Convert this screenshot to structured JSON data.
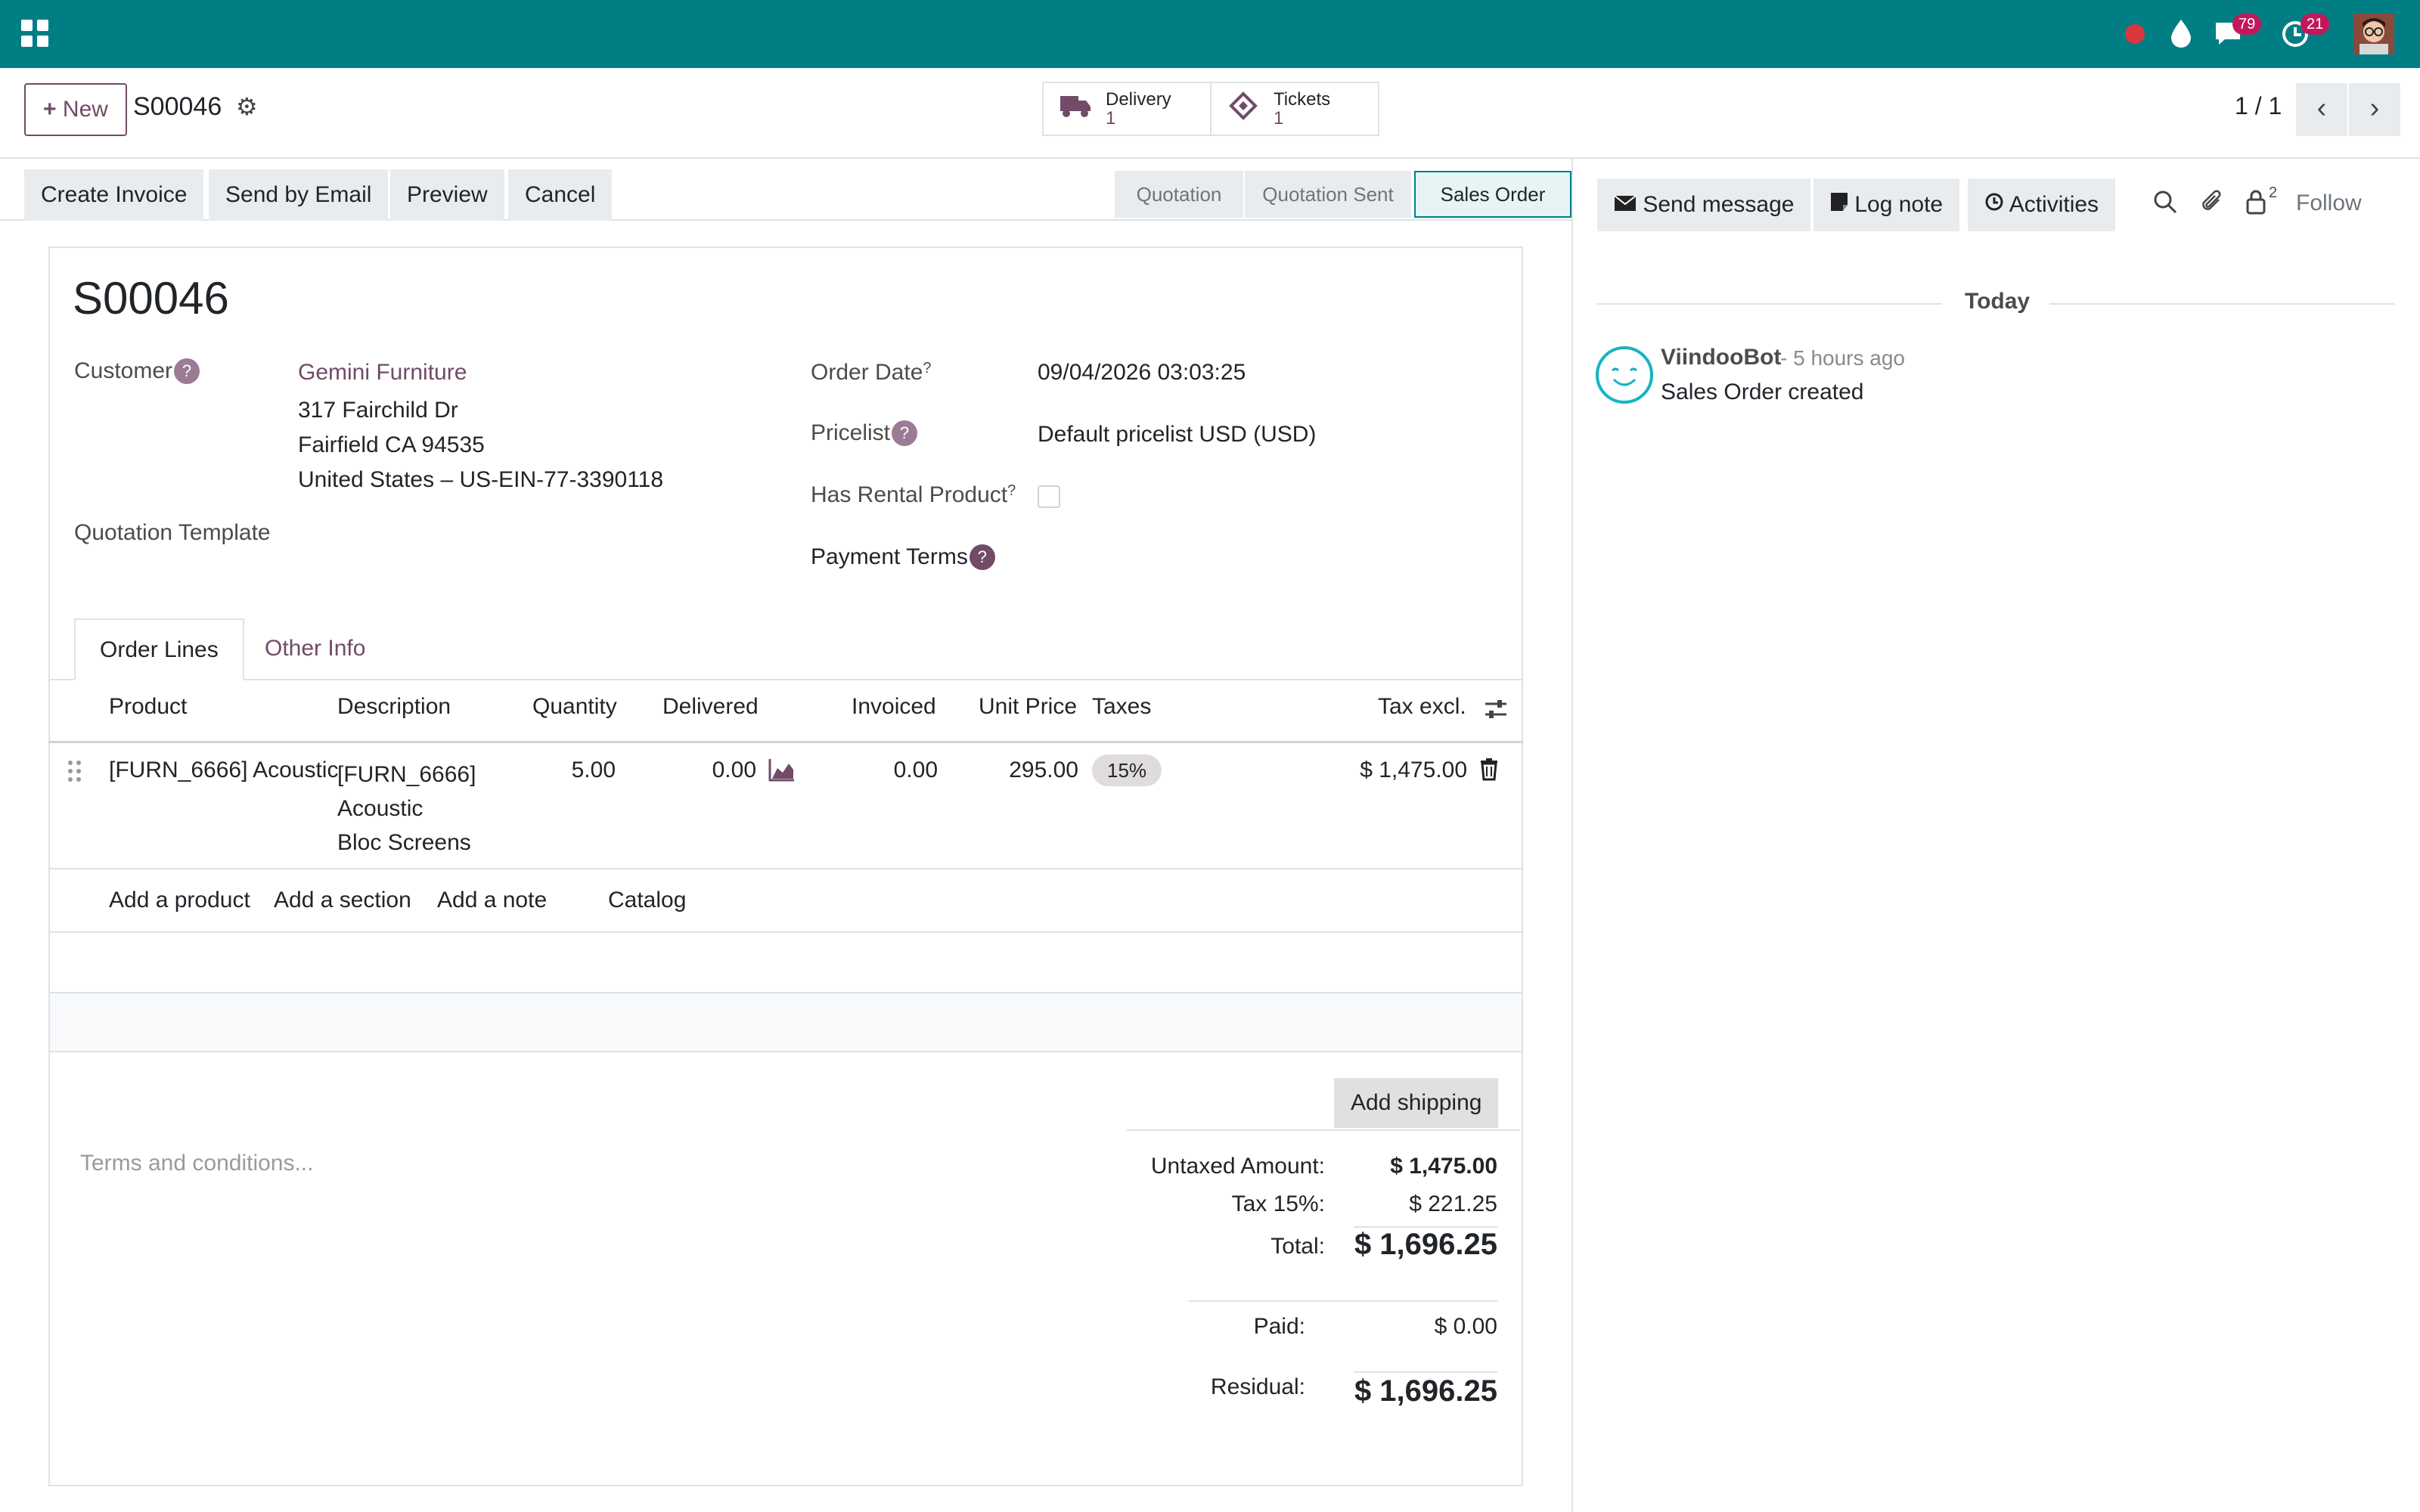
{
  "navbar": {
    "icons": [
      "apps-grid-icon",
      "record-dot-icon",
      "water-drop-icon",
      "chat-icon",
      "clock-icon",
      "user-avatar"
    ],
    "messages_count": "79",
    "activities_count": "21",
    "accent": "#017e84"
  },
  "control_panel": {
    "new_label": "New",
    "record_name": "S00046",
    "smart_buttons": [
      {
        "label": "Delivery",
        "value": "1",
        "icon": "truck-icon"
      },
      {
        "label": "Tickets",
        "value": "1",
        "icon": "ticket-icon"
      }
    ],
    "pager": "1 / 1"
  },
  "actions": {
    "create_invoice": "Create Invoice",
    "send_by_email": "Send by Email",
    "preview": "Preview",
    "cancel": "Cancel"
  },
  "stages": [
    "Quotation",
    "Quotation Sent",
    "Sales Order"
  ],
  "active_stage": "Sales Order",
  "form": {
    "title": "S00046",
    "customer_label": "Customer",
    "customer_name": "Gemini Furniture",
    "address_line1": "317 Fairchild Dr",
    "address_line2": "Fairfield CA 94535",
    "address_line3": "United States – US-EIN-77-3390118",
    "quotation_template_label": "Quotation Template",
    "order_date_label": "Order Date",
    "order_date": "09/04/2026 03:03:25",
    "pricelist_label": "Pricelist",
    "pricelist": "Default pricelist USD (USD)",
    "rental_label": "Has Rental Product",
    "payment_terms_label": "Payment Terms",
    "help_mark": "?"
  },
  "tabs": [
    "Order Lines",
    "Other Info"
  ],
  "table": {
    "headers": {
      "product": "Product",
      "description": "Description",
      "quantity": "Quantity",
      "delivered": "Delivered",
      "invoiced": "Invoiced",
      "unit_price": "Unit Price",
      "taxes": "Taxes",
      "tax_excl": "Tax excl."
    },
    "row": {
      "product": "[FURN_6666] Acoustic",
      "description": [
        "[FURN_6666]",
        "Acoustic",
        "Bloc Screens"
      ],
      "quantity": "5.00",
      "delivered": "0.00",
      "invoiced": "0.00",
      "unit_price": "295.00",
      "taxes": "15%",
      "tax_excl": "$ 1,475.00"
    },
    "add_product": "Add a product",
    "add_section": "Add a section",
    "add_note": "Add a note",
    "catalog": "Catalog"
  },
  "footer": {
    "add_shipping": "Add shipping",
    "terms_placeholder": "Terms and conditions...",
    "untaxed_label": "Untaxed Amount:",
    "untaxed": "$ 1,475.00",
    "tax_label": "Tax 15%:",
    "tax": "$ 221.25",
    "total_label": "Total:",
    "total": "$ 1,696.25",
    "paid_label": "Paid:",
    "paid": "$ 0.00",
    "residual_label": "Residual:",
    "residual": "$ 1,696.25"
  },
  "chatter": {
    "send_message": "Send message",
    "log_note": "Log note",
    "activities": "Activities",
    "followers_count": "2",
    "follow": "Follow",
    "today": "Today",
    "author": "ViindooBot",
    "time": "- 5 hours ago",
    "message": "Sales Order created"
  }
}
